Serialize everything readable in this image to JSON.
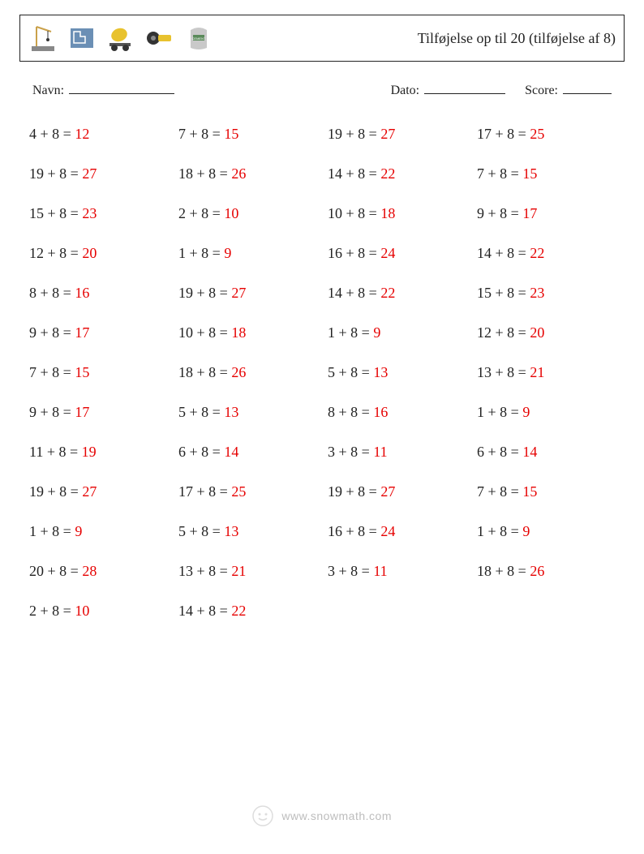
{
  "header": {
    "title": "Tilføjelse op til 20 (tilføjelse af 8)"
  },
  "meta": {
    "name_label": "Navn:",
    "date_label": "Dato:",
    "score_label": "Score:"
  },
  "answer_color": "#e60000",
  "text_color": "#222222",
  "problems": [
    {
      "a": 4,
      "b": 8,
      "ans": 12
    },
    {
      "a": 7,
      "b": 8,
      "ans": 15
    },
    {
      "a": 19,
      "b": 8,
      "ans": 27
    },
    {
      "a": 17,
      "b": 8,
      "ans": 25
    },
    {
      "a": 19,
      "b": 8,
      "ans": 27
    },
    {
      "a": 18,
      "b": 8,
      "ans": 26
    },
    {
      "a": 14,
      "b": 8,
      "ans": 22
    },
    {
      "a": 7,
      "b": 8,
      "ans": 15
    },
    {
      "a": 15,
      "b": 8,
      "ans": 23
    },
    {
      "a": 2,
      "b": 8,
      "ans": 10
    },
    {
      "a": 10,
      "b": 8,
      "ans": 18
    },
    {
      "a": 9,
      "b": 8,
      "ans": 17
    },
    {
      "a": 12,
      "b": 8,
      "ans": 20
    },
    {
      "a": 1,
      "b": 8,
      "ans": 9
    },
    {
      "a": 16,
      "b": 8,
      "ans": 24
    },
    {
      "a": 14,
      "b": 8,
      "ans": 22
    },
    {
      "a": 8,
      "b": 8,
      "ans": 16
    },
    {
      "a": 19,
      "b": 8,
      "ans": 27
    },
    {
      "a": 14,
      "b": 8,
      "ans": 22
    },
    {
      "a": 15,
      "b": 8,
      "ans": 23
    },
    {
      "a": 9,
      "b": 8,
      "ans": 17
    },
    {
      "a": 10,
      "b": 8,
      "ans": 18
    },
    {
      "a": 1,
      "b": 8,
      "ans": 9
    },
    {
      "a": 12,
      "b": 8,
      "ans": 20
    },
    {
      "a": 7,
      "b": 8,
      "ans": 15
    },
    {
      "a": 18,
      "b": 8,
      "ans": 26
    },
    {
      "a": 5,
      "b": 8,
      "ans": 13
    },
    {
      "a": 13,
      "b": 8,
      "ans": 21
    },
    {
      "a": 9,
      "b": 8,
      "ans": 17
    },
    {
      "a": 5,
      "b": 8,
      "ans": 13
    },
    {
      "a": 8,
      "b": 8,
      "ans": 16
    },
    {
      "a": 1,
      "b": 8,
      "ans": 9
    },
    {
      "a": 11,
      "b": 8,
      "ans": 19
    },
    {
      "a": 6,
      "b": 8,
      "ans": 14
    },
    {
      "a": 3,
      "b": 8,
      "ans": 11
    },
    {
      "a": 6,
      "b": 8,
      "ans": 14
    },
    {
      "a": 19,
      "b": 8,
      "ans": 27
    },
    {
      "a": 17,
      "b": 8,
      "ans": 25
    },
    {
      "a": 19,
      "b": 8,
      "ans": 27
    },
    {
      "a": 7,
      "b": 8,
      "ans": 15
    },
    {
      "a": 1,
      "b": 8,
      "ans": 9
    },
    {
      "a": 5,
      "b": 8,
      "ans": 13
    },
    {
      "a": 16,
      "b": 8,
      "ans": 24
    },
    {
      "a": 1,
      "b": 8,
      "ans": 9
    },
    {
      "a": 20,
      "b": 8,
      "ans": 28
    },
    {
      "a": 13,
      "b": 8,
      "ans": 21
    },
    {
      "a": 3,
      "b": 8,
      "ans": 11
    },
    {
      "a": 18,
      "b": 8,
      "ans": 26
    },
    {
      "a": 2,
      "b": 8,
      "ans": 10
    },
    {
      "a": 14,
      "b": 8,
      "ans": 22
    }
  ],
  "footer": {
    "text": "www.snowmath.com"
  }
}
